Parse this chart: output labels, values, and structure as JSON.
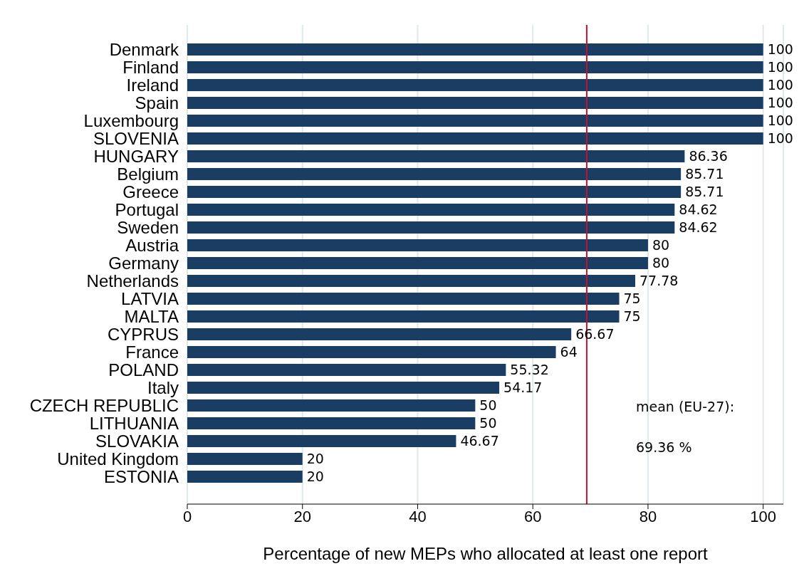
{
  "chart_data": {
    "type": "bar",
    "orientation": "horizontal",
    "categories": [
      "Denmark",
      "Finland",
      "Ireland",
      "Spain",
      "Luxembourg",
      "SLOVENIA",
      "HUNGARY",
      "Belgium",
      "Greece",
      "Portugal",
      "Sweden",
      "Austria",
      "Germany",
      "Netherlands",
      "LATVIA",
      "MALTA",
      "CYPRUS",
      "France",
      "POLAND",
      "Italy",
      "CZECH REPUBLIC",
      "LITHUANIA",
      "SLOVAKIA",
      "United Kingdom",
      "ESTONIA"
    ],
    "values": [
      100,
      100,
      100,
      100,
      100,
      100,
      86.36,
      85.71,
      85.71,
      84.62,
      84.62,
      80,
      80,
      77.78,
      75,
      75,
      66.67,
      64,
      55.32,
      54.17,
      50,
      50,
      46.67,
      20,
      20
    ],
    "color": "#1a3d64",
    "data_labels": true,
    "xlim": [
      0,
      103.5
    ],
    "xticks": [
      0,
      20,
      40,
      60,
      80,
      100
    ],
    "grid": "x",
    "xlabel": "Percentage of new MEPs who allocated at least one report",
    "ref_lines": [
      {
        "axis": "x",
        "value": 69.36,
        "color": "#c8102e"
      }
    ],
    "annotations": [
      "mean (EU-27):",
      "69.36 %"
    ]
  }
}
